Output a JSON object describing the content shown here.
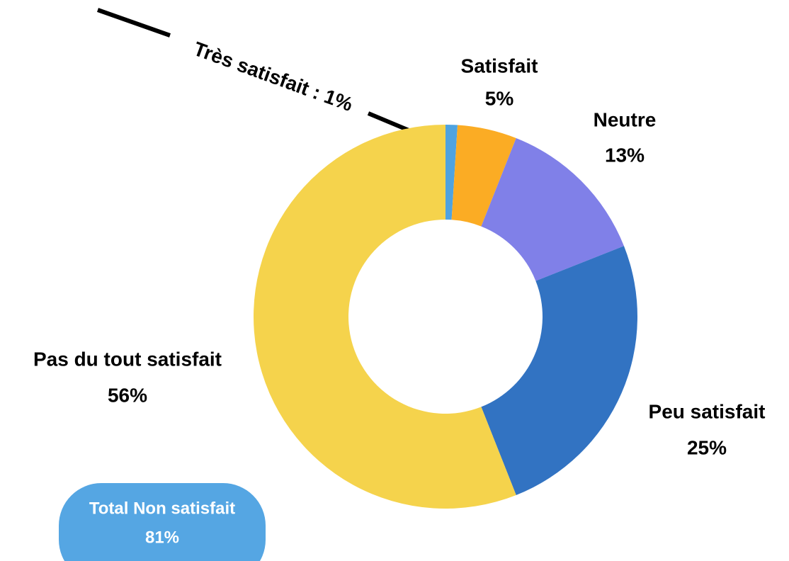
{
  "chart_data": {
    "type": "donut",
    "categories": [
      "Très satisfait",
      "Satisfait",
      "Neutre",
      "Peu satisfait",
      "Pas du tout satisfait"
    ],
    "values": [
      1,
      5,
      13,
      25,
      56
    ],
    "value_labels": [
      "Très satisfait : 1%",
      "5%",
      "13%",
      "25%",
      "56%"
    ],
    "colors": [
      "#4fa3e0",
      "#fbac24",
      "#8080e8",
      "#3273c2",
      "#f5d34c"
    ],
    "total_box": {
      "label": "Total Non satisfait",
      "value": 81,
      "value_label": "81%",
      "color": "#55a6e3"
    }
  }
}
